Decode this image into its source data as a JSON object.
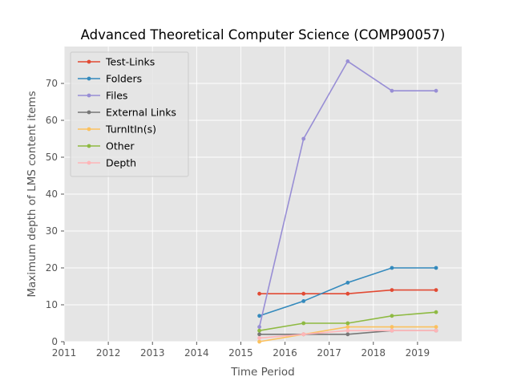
{
  "chart_data": {
    "type": "line",
    "title": "Advanced Theoretical Computer Science (COMP90057)",
    "xlabel": "Time Period",
    "ylabel": "Maximum depth of LMS content items",
    "xlim": [
      2011,
      2020
    ],
    "ylim": [
      0,
      80
    ],
    "xticks": [
      "2011",
      "2012",
      "2013",
      "2014",
      "2015",
      "2016",
      "2017",
      "2018",
      "2019"
    ],
    "yticks": [
      "0",
      "10",
      "20",
      "30",
      "40",
      "50",
      "60",
      "70"
    ],
    "x": [
      2015.42,
      2016.42,
      2017.42,
      2018.42,
      2019.42
    ],
    "grid": true,
    "legend_position": "upper-left",
    "series": [
      {
        "name": "Test-Links",
        "color": "#E24A33",
        "values": [
          13,
          13,
          13,
          14,
          14
        ]
      },
      {
        "name": "Folders",
        "color": "#348ABD",
        "values": [
          7,
          11,
          16,
          20,
          20
        ]
      },
      {
        "name": "Files",
        "color": "#988ED5",
        "values": [
          4,
          55,
          76,
          68,
          68
        ]
      },
      {
        "name": "External Links",
        "color": "#777777",
        "values": [
          2,
          2,
          2,
          3,
          3
        ]
      },
      {
        "name": "TurnItIn(s)",
        "color": "#FBC15E",
        "values": [
          0,
          2,
          4,
          4,
          4
        ]
      },
      {
        "name": "Other",
        "color": "#8EBA42",
        "values": [
          3,
          5,
          5,
          7,
          8
        ]
      },
      {
        "name": "Depth",
        "color": "#FFB5B8",
        "values": [
          1,
          2,
          3,
          3,
          3
        ]
      }
    ]
  }
}
